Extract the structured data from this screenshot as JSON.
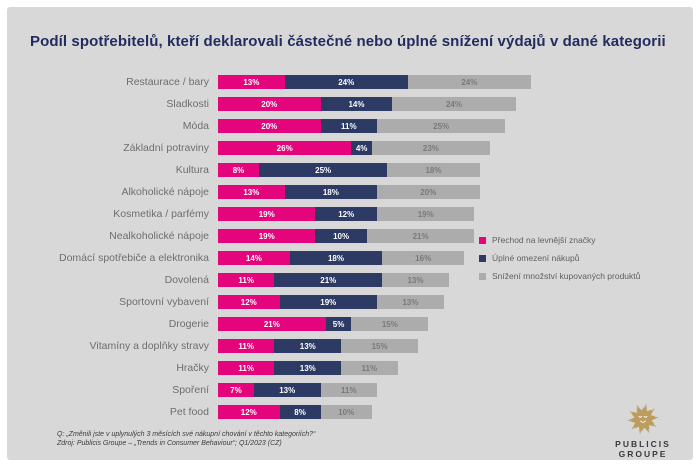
{
  "title": "Podíl spotřebitelů, kteří deklarovali částečné nebo úplné snížení výdajů v dané kategorii",
  "chart_data": {
    "type": "bar",
    "orientation": "horizontal",
    "stacked": true,
    "unit": "%",
    "value_labels": "inside",
    "legend_position": "right",
    "background": "#d8d8d8",
    "categories": [
      "Restaurace / bary",
      "Sladkosti",
      "Móda",
      "Základní potraviny",
      "Kultura",
      "Alkoholické nápoje",
      "Kosmetika / parfémy",
      "Nealkoholické nápoje",
      "Domácí spotřebiče a elektronika",
      "Dovolená",
      "Sportovní vybavení",
      "Drogerie",
      "Vitamíny a doplňky stravy",
      "Hračky",
      "Spoření",
      "Pet food"
    ],
    "series": [
      {
        "name": "Přechod na levnější značky",
        "color": "#e4047c",
        "values": [
          13,
          20,
          20,
          26,
          8,
          13,
          19,
          19,
          14,
          11,
          12,
          21,
          11,
          11,
          7,
          12
        ]
      },
      {
        "name": "Úplné omezení nákupů",
        "color": "#2c3a64",
        "values": [
          24,
          14,
          11,
          4,
          25,
          18,
          12,
          10,
          18,
          21,
          19,
          5,
          13,
          13,
          13,
          8
        ]
      },
      {
        "name": "Snížení množství kupovaných produktů",
        "color": "#acacac",
        "values": [
          24,
          24,
          25,
          23,
          18,
          20,
          19,
          21,
          16,
          13,
          13,
          15,
          15,
          11,
          11,
          10
        ]
      }
    ]
  },
  "footer": {
    "question": "Q: „Změnili jste v uplynulých 3 měsících své nákupní chování v těchto kategoriích?“",
    "source": "Zdroj: Publicis Groupe –  „Trends in Consumer Behaviour“; Q1/2023 (CZ)"
  },
  "logo": {
    "line1": "PUBLICIS",
    "line2": "GROUPE",
    "color": "#bc9c5f"
  }
}
